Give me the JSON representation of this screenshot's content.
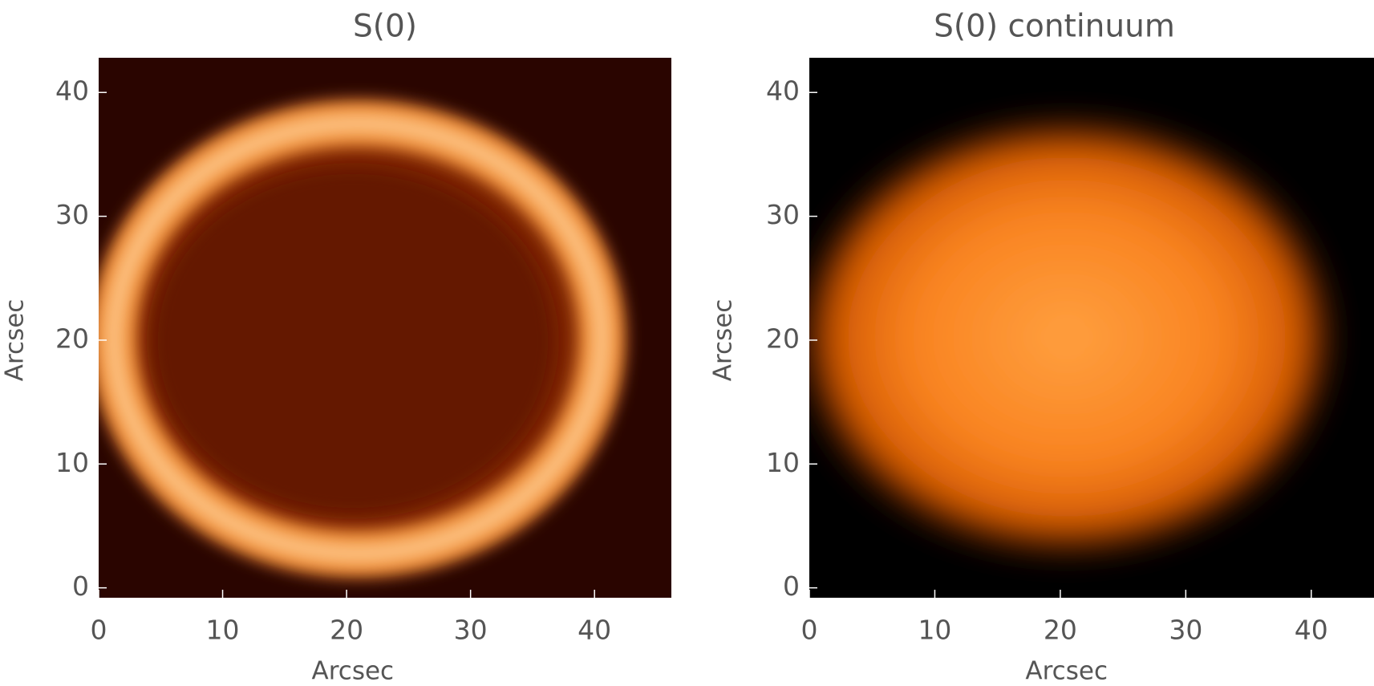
{
  "chart_data": [
    {
      "type": "image",
      "title": "S(0)",
      "xlabel": "Arcsec",
      "ylabel": "Arcsec",
      "xlim": [
        0,
        46.2
      ],
      "ylim": [
        -0.8,
        42.8
      ],
      "xticks": [
        0,
        10,
        20,
        30,
        40
      ],
      "yticks": [
        0,
        10,
        20,
        30,
        40
      ]
    },
    {
      "type": "image",
      "title": "S(0) continuum",
      "xlabel": "Arcsec",
      "ylabel": "Arcsec",
      "xlim": [
        0,
        45
      ],
      "ylim": [
        -0.8,
        42.8
      ],
      "xticks": [
        0,
        10,
        20,
        30,
        40
      ],
      "yticks": [
        0,
        10,
        20,
        30,
        40
      ]
    }
  ]
}
